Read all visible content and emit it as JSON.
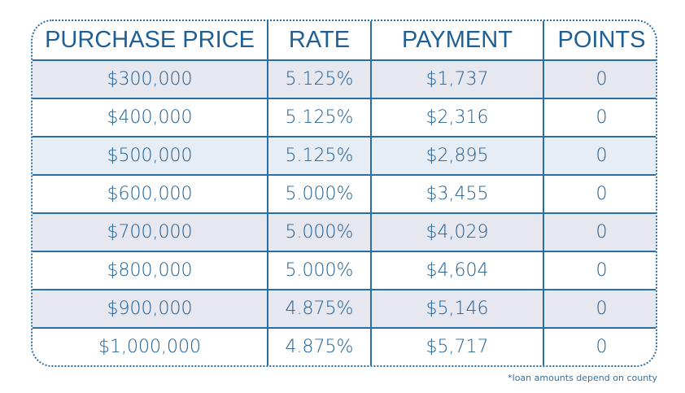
{
  "table": {
    "headers": [
      "PURCHASE PRICE",
      "RATE",
      "PAYMENT",
      "POINTS"
    ],
    "rows": [
      {
        "price": "$300,000",
        "rate": "5.125%",
        "payment": "$1,737",
        "points": "0",
        "shade": "gray"
      },
      {
        "price": "$400,000",
        "rate": "5.125%",
        "payment": "$2,316",
        "points": "0",
        "shade": "white"
      },
      {
        "price": "$500,000",
        "rate": "5.125%",
        "payment": "$2,895",
        "points": "0",
        "shade": "blue"
      },
      {
        "price": "$600,000",
        "rate": "5.000%",
        "payment": "$3,455",
        "points": "0",
        "shade": "white"
      },
      {
        "price": "$700,000",
        "rate": "5.000%",
        "payment": "$4,029",
        "points": "0",
        "shade": "gray"
      },
      {
        "price": "$800,000",
        "rate": "5.000%",
        "payment": "$4,604",
        "points": "0",
        "shade": "white"
      },
      {
        "price": "$900,000",
        "rate": "4.875%",
        "payment": "$5,146",
        "points": "0",
        "shade": "gray"
      },
      {
        "price": "$1,000,000",
        "rate": "4.875%",
        "payment": "$5,717",
        "points": "0",
        "shade": "white"
      }
    ]
  },
  "footnote": "*loan amounts depend on county",
  "colors": {
    "text": "#1f5f94",
    "border": "#2a6ea6",
    "row_gray": "#e6e7ef",
    "row_blue": "#e6edf5",
    "row_white": "#ffffff"
  }
}
